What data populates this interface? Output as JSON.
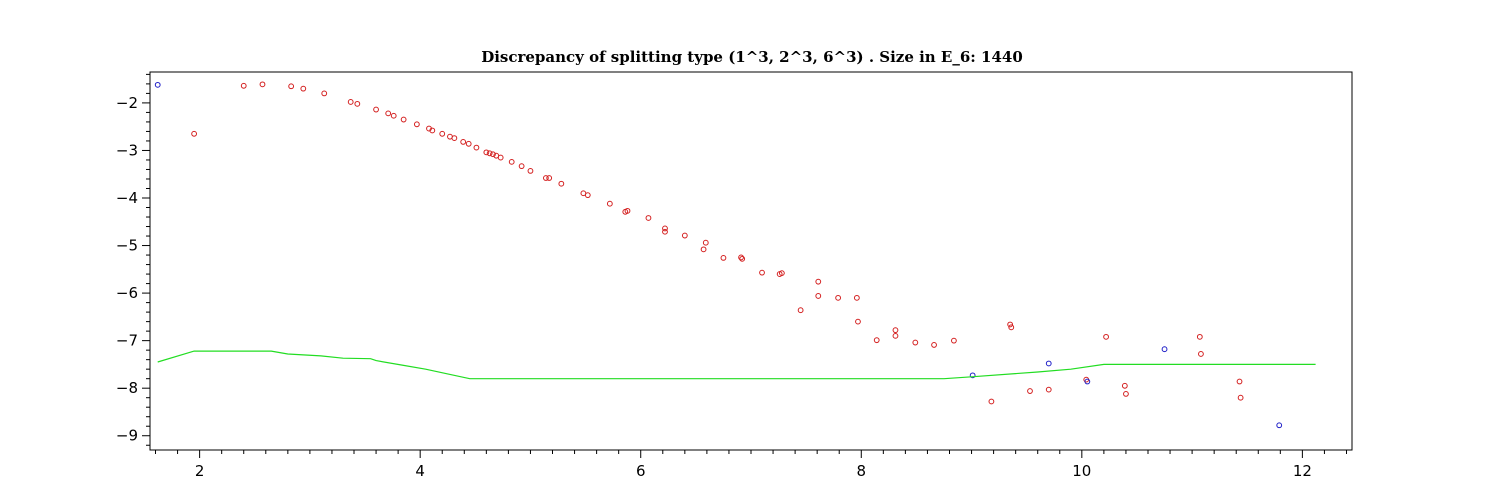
{
  "chart_data": {
    "type": "scatter",
    "title": "Discrepancy of splitting type (1^3, 2^3, 6^3) .  Size in E_6: 1440",
    "xlabel": "",
    "ylabel": "",
    "xlim": [
      1.55,
      12.45
    ],
    "ylim": [
      -9.3,
      -1.35
    ],
    "x_ticks": [
      2,
      4,
      6,
      8,
      10,
      12
    ],
    "y_ticks": [
      -2,
      -3,
      -4,
      -5,
      -6,
      -7,
      -8,
      -9
    ],
    "grid": false,
    "legend": "none",
    "colors": {
      "red": "#d42020",
      "blue": "#2020c8",
      "green": "#22dd22"
    },
    "series": [
      {
        "color": "red",
        "marker": "circle",
        "points": [
          [
            1.95,
            -2.65
          ],
          [
            2.4,
            -1.64
          ],
          [
            2.57,
            -1.61
          ],
          [
            2.83,
            -1.65
          ],
          [
            2.94,
            -1.7
          ],
          [
            3.13,
            -1.8
          ],
          [
            3.37,
            -1.98
          ],
          [
            3.43,
            -2.02
          ],
          [
            3.6,
            -2.14
          ],
          [
            3.71,
            -2.22
          ],
          [
            3.76,
            -2.27
          ],
          [
            3.85,
            -2.35
          ],
          [
            3.97,
            -2.45
          ],
          [
            4.08,
            -2.54
          ],
          [
            4.11,
            -2.58
          ],
          [
            4.2,
            -2.65
          ],
          [
            4.27,
            -2.71
          ],
          [
            4.31,
            -2.74
          ],
          [
            4.39,
            -2.82
          ],
          [
            4.44,
            -2.86
          ],
          [
            4.51,
            -2.94
          ],
          [
            4.6,
            -3.04
          ],
          [
            4.63,
            -3.06
          ],
          [
            4.66,
            -3.08
          ],
          [
            4.69,
            -3.11
          ],
          [
            4.73,
            -3.15
          ],
          [
            4.83,
            -3.24
          ],
          [
            4.92,
            -3.33
          ],
          [
            5.0,
            -3.43
          ],
          [
            5.14,
            -3.58
          ],
          [
            5.17,
            -3.58
          ],
          [
            5.28,
            -3.7
          ],
          [
            5.48,
            -3.9
          ],
          [
            5.52,
            -3.94
          ],
          [
            5.72,
            -4.12
          ],
          [
            5.86,
            -4.29
          ],
          [
            5.88,
            -4.27
          ],
          [
            6.07,
            -4.42
          ],
          [
            6.22,
            -4.64
          ],
          [
            6.22,
            -4.71
          ],
          [
            6.4,
            -4.79
          ],
          [
            6.57,
            -5.08
          ],
          [
            6.59,
            -4.94
          ],
          [
            6.75,
            -5.26
          ],
          [
            6.91,
            -5.25
          ],
          [
            6.92,
            -5.28
          ],
          [
            7.1,
            -5.57
          ],
          [
            7.26,
            -5.6
          ],
          [
            7.28,
            -5.58
          ],
          [
            7.45,
            -6.36
          ],
          [
            7.61,
            -5.76
          ],
          [
            7.61,
            -6.06
          ],
          [
            7.79,
            -6.1
          ],
          [
            7.96,
            -6.1
          ],
          [
            7.97,
            -6.6
          ],
          [
            8.14,
            -6.99
          ],
          [
            8.31,
            -6.78
          ],
          [
            8.31,
            -6.9
          ],
          [
            8.49,
            -7.04
          ],
          [
            8.66,
            -7.09
          ],
          [
            8.84,
            -7.0
          ],
          [
            9.18,
            -8.28
          ],
          [
            9.53,
            -8.06
          ],
          [
            9.35,
            -6.66
          ],
          [
            9.36,
            -6.72
          ],
          [
            9.7,
            -8.03
          ],
          [
            10.04,
            -7.82
          ],
          [
            10.22,
            -6.92
          ],
          [
            10.39,
            -7.95
          ],
          [
            10.4,
            -8.12
          ],
          [
            11.07,
            -6.92
          ],
          [
            11.08,
            -7.28
          ],
          [
            11.43,
            -7.86
          ],
          [
            11.44,
            -8.2
          ]
        ]
      },
      {
        "color": "blue",
        "marker": "circle",
        "points": [
          [
            1.62,
            -1.62
          ],
          [
            9.01,
            -7.73
          ],
          [
            9.7,
            -7.48
          ],
          [
            10.05,
            -7.86
          ],
          [
            10.75,
            -7.18
          ],
          [
            11.79,
            -8.78
          ]
        ]
      },
      {
        "color": "green",
        "marker": "line",
        "points": [
          [
            1.62,
            -7.45
          ],
          [
            1.95,
            -7.22
          ],
          [
            2.65,
            -7.22
          ],
          [
            2.8,
            -7.28
          ],
          [
            3.1,
            -7.32
          ],
          [
            3.3,
            -7.37
          ],
          [
            3.55,
            -7.38
          ],
          [
            3.6,
            -7.42
          ],
          [
            3.85,
            -7.52
          ],
          [
            4.05,
            -7.6
          ],
          [
            4.25,
            -7.7
          ],
          [
            4.45,
            -7.8
          ],
          [
            8.75,
            -7.8
          ],
          [
            9.0,
            -7.76
          ],
          [
            9.6,
            -7.66
          ],
          [
            9.9,
            -7.6
          ],
          [
            10.2,
            -7.5
          ],
          [
            12.12,
            -7.5
          ]
        ]
      }
    ]
  }
}
